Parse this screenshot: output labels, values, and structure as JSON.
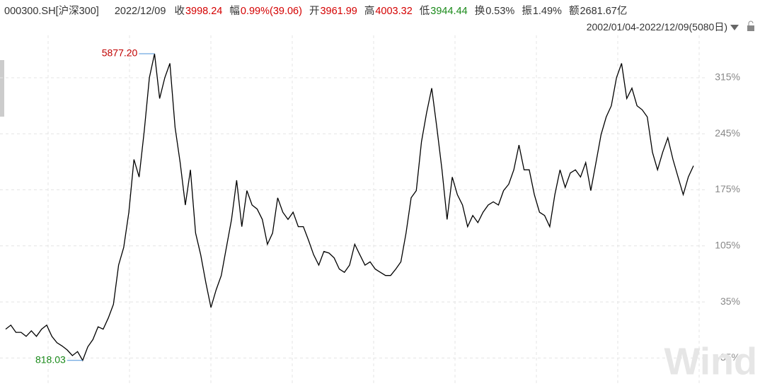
{
  "header": {
    "code": "000300.SH[沪深300]",
    "date": "2022/12/09",
    "items": [
      {
        "label": "收",
        "value": "3998.24",
        "color": "#d40000"
      },
      {
        "label": "幅",
        "value": "0.99%(39.06)",
        "color": "#d40000"
      },
      {
        "label": "开",
        "value": "3961.99",
        "color": "#d40000"
      },
      {
        "label": "高",
        "value": "4003.32",
        "color": "#d40000"
      },
      {
        "label": "低",
        "value": "3944.44",
        "color": "#1a8a1a"
      },
      {
        "label": "换",
        "value": "0.53%",
        "color": "#333333"
      },
      {
        "label": "振",
        "value": "1.49%",
        "color": "#333333"
      },
      {
        "label": "额",
        "value": "2681.67亿",
        "color": "#333333"
      }
    ],
    "range": "2002/01/04-2022/12/09(5080日)"
  },
  "chart_data": {
    "type": "line",
    "color": "#000000",
    "values": [
      1,
      6,
      -3,
      -3,
      -8,
      -1,
      -8,
      1,
      6,
      -8,
      -16,
      -20,
      -25,
      -32,
      -27,
      -38,
      -21,
      -12,
      4,
      1,
      15,
      32,
      81,
      103,
      147,
      213,
      191,
      249,
      315,
      345,
      289,
      315,
      333,
      253,
      209,
      156,
      200,
      121,
      94,
      59,
      28,
      50,
      68,
      103,
      138,
      187,
      129,
      174,
      156,
      151,
      138,
      107,
      121,
      165,
      147,
      138,
      147,
      129,
      129,
      112,
      94,
      81,
      98,
      96,
      90,
      76,
      72,
      81,
      107,
      94,
      81,
      85,
      76,
      72,
      68,
      68,
      76,
      85,
      121,
      165,
      174,
      235,
      271,
      302,
      253,
      200,
      138,
      191,
      169,
      156,
      129,
      143,
      134,
      147,
      156,
      160,
      156,
      174,
      182,
      200,
      231,
      200,
      200,
      169,
      147,
      143,
      129,
      169,
      200,
      178,
      196,
      200,
      191,
      209,
      174,
      209,
      244,
      266,
      280,
      315,
      333,
      289,
      302,
      280,
      275,
      266,
      222,
      200,
      222,
      240,
      213,
      191,
      169,
      191,
      205
    ],
    "ylim": [
      -70,
      390
    ],
    "yticks": [
      {
        "value": -35,
        "label": "-35%"
      },
      {
        "value": 35,
        "label": "35%"
      },
      {
        "value": 105,
        "label": "105%"
      },
      {
        "value": 175,
        "label": "175%"
      },
      {
        "value": 245,
        "label": "245%"
      },
      {
        "value": 315,
        "label": "315%"
      }
    ],
    "grid": true,
    "annotations": [
      {
        "text": "5877.20",
        "color": "#c00000"
      },
      {
        "text": "818.03",
        "color": "#1a8a1a"
      }
    ]
  },
  "watermark": "Wind"
}
